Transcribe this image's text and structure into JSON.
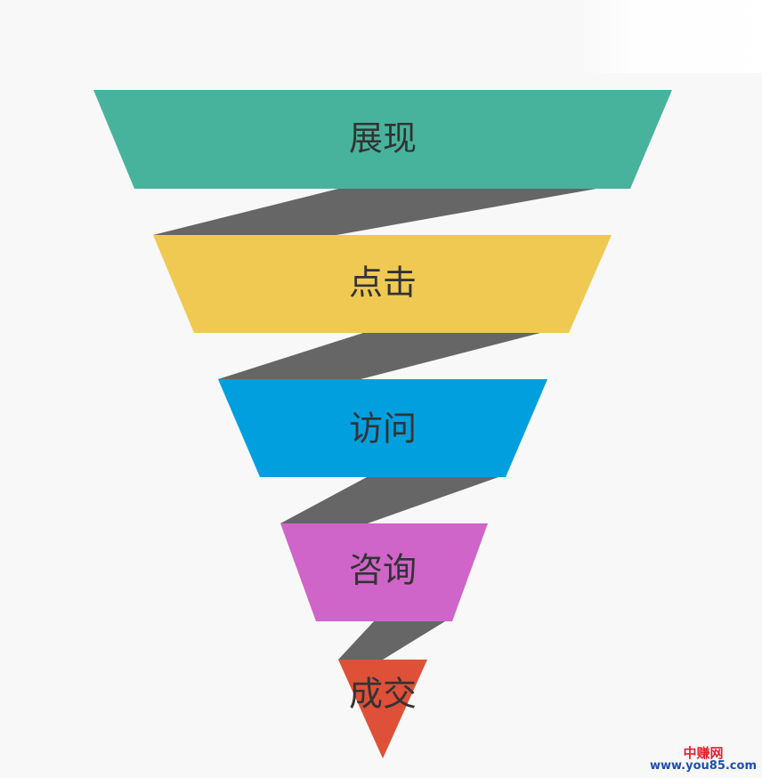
{
  "stages": [
    {
      "label": "展现",
      "color": "#48b39c"
    },
    {
      "label": "点击",
      "color": "#efc952"
    },
    {
      "label": "访问",
      "color": "#029fde"
    },
    {
      "label": "咨询",
      "color": "#cf65c8"
    },
    {
      "label": "成交",
      "color": "#de5038"
    }
  ],
  "connector_color": "#666666",
  "watermark": {
    "cn": "中赚网",
    "url": "www.you85.com"
  }
}
